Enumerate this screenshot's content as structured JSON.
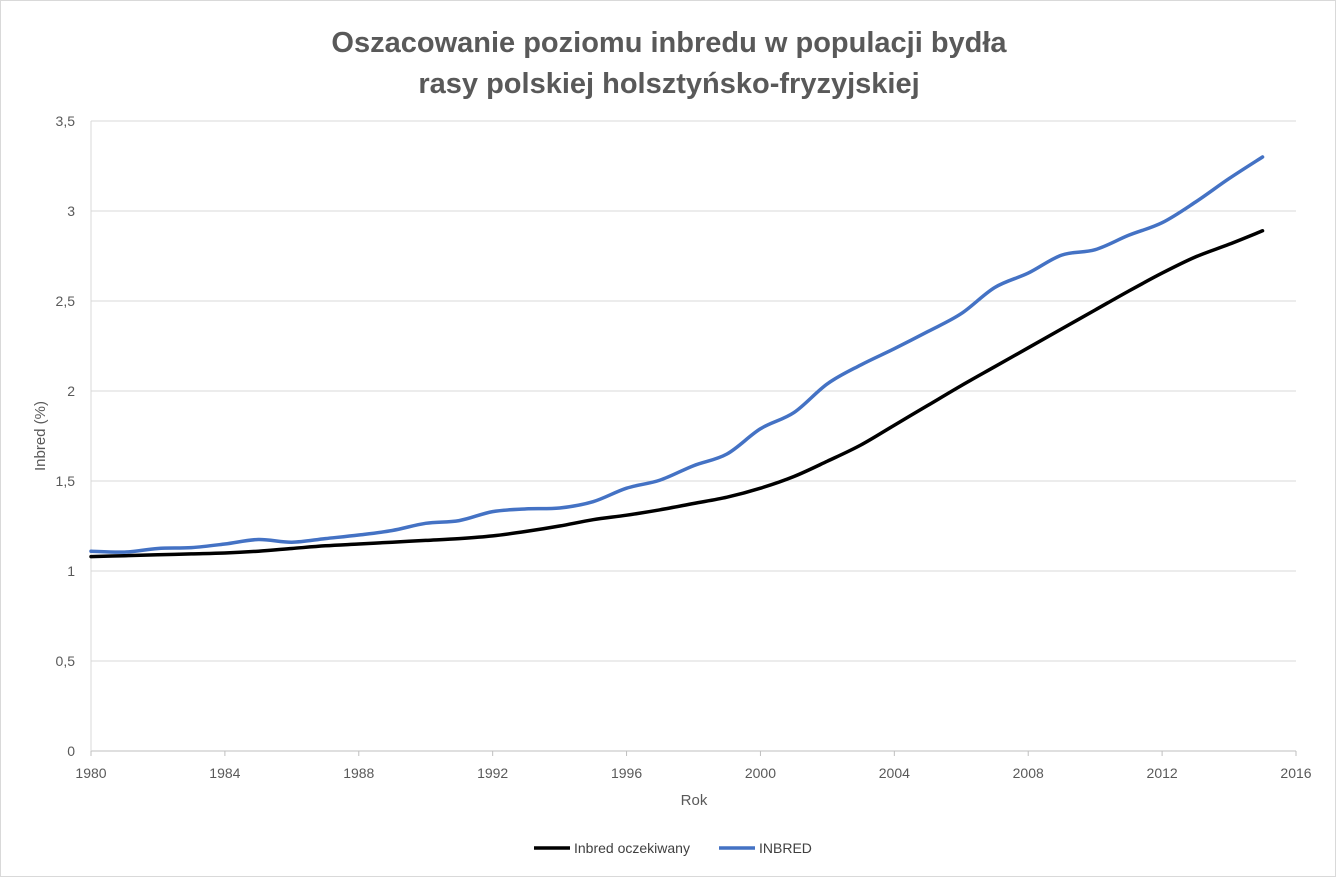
{
  "chart_data": {
    "type": "line",
    "title_lines": [
      "Oszacowanie poziomu inbredu w populacji bydła",
      "rasy polskiej holsztyńsko-fryzyjskiej"
    ],
    "xlabel": "Rok",
    "ylabel": "Inbred (%)",
    "xlim": [
      1980,
      2016
    ],
    "ylim": [
      0,
      3.5
    ],
    "x_ticks": [
      "1980",
      "1984",
      "1988",
      "1992",
      "1996",
      "2000",
      "2004",
      "2008",
      "2012",
      "2016"
    ],
    "y_ticks": [
      "0",
      "0,5",
      "1",
      "1,5",
      "2",
      "2,5",
      "3",
      "3,5"
    ],
    "grid": true,
    "legend_position": "bottom",
    "x": [
      1980,
      1981,
      1982,
      1983,
      1984,
      1985,
      1986,
      1987,
      1988,
      1989,
      1990,
      1991,
      1992,
      1993,
      1994,
      1995,
      1996,
      1997,
      1998,
      1999,
      2000,
      2001,
      2002,
      2003,
      2004,
      2005,
      2006,
      2007,
      2008,
      2009,
      2010,
      2011,
      2012,
      2013,
      2014,
      2015
    ],
    "series": [
      {
        "name": "Inbred oczekiwany",
        "color": "#000000",
        "values": [
          1.08,
          1.085,
          1.09,
          1.095,
          1.1,
          1.11,
          1.125,
          1.14,
          1.15,
          1.16,
          1.17,
          1.18,
          1.195,
          1.22,
          1.25,
          1.285,
          1.31,
          1.34,
          1.375,
          1.41,
          1.46,
          1.525,
          1.61,
          1.7,
          1.81,
          1.92,
          2.03,
          2.135,
          2.24,
          2.345,
          2.45,
          2.555,
          2.655,
          2.745,
          2.815,
          2.89
        ]
      },
      {
        "name": "INBRED",
        "color": "#4472c4",
        "values": [
          1.11,
          1.105,
          1.125,
          1.13,
          1.15,
          1.175,
          1.16,
          1.18,
          1.2,
          1.225,
          1.265,
          1.28,
          1.33,
          1.345,
          1.35,
          1.385,
          1.46,
          1.505,
          1.585,
          1.65,
          1.79,
          1.88,
          2.04,
          2.145,
          2.235,
          2.33,
          2.43,
          2.575,
          2.655,
          2.755,
          2.785,
          2.865,
          2.935,
          3.05,
          3.18,
          3.3
        ]
      }
    ]
  }
}
